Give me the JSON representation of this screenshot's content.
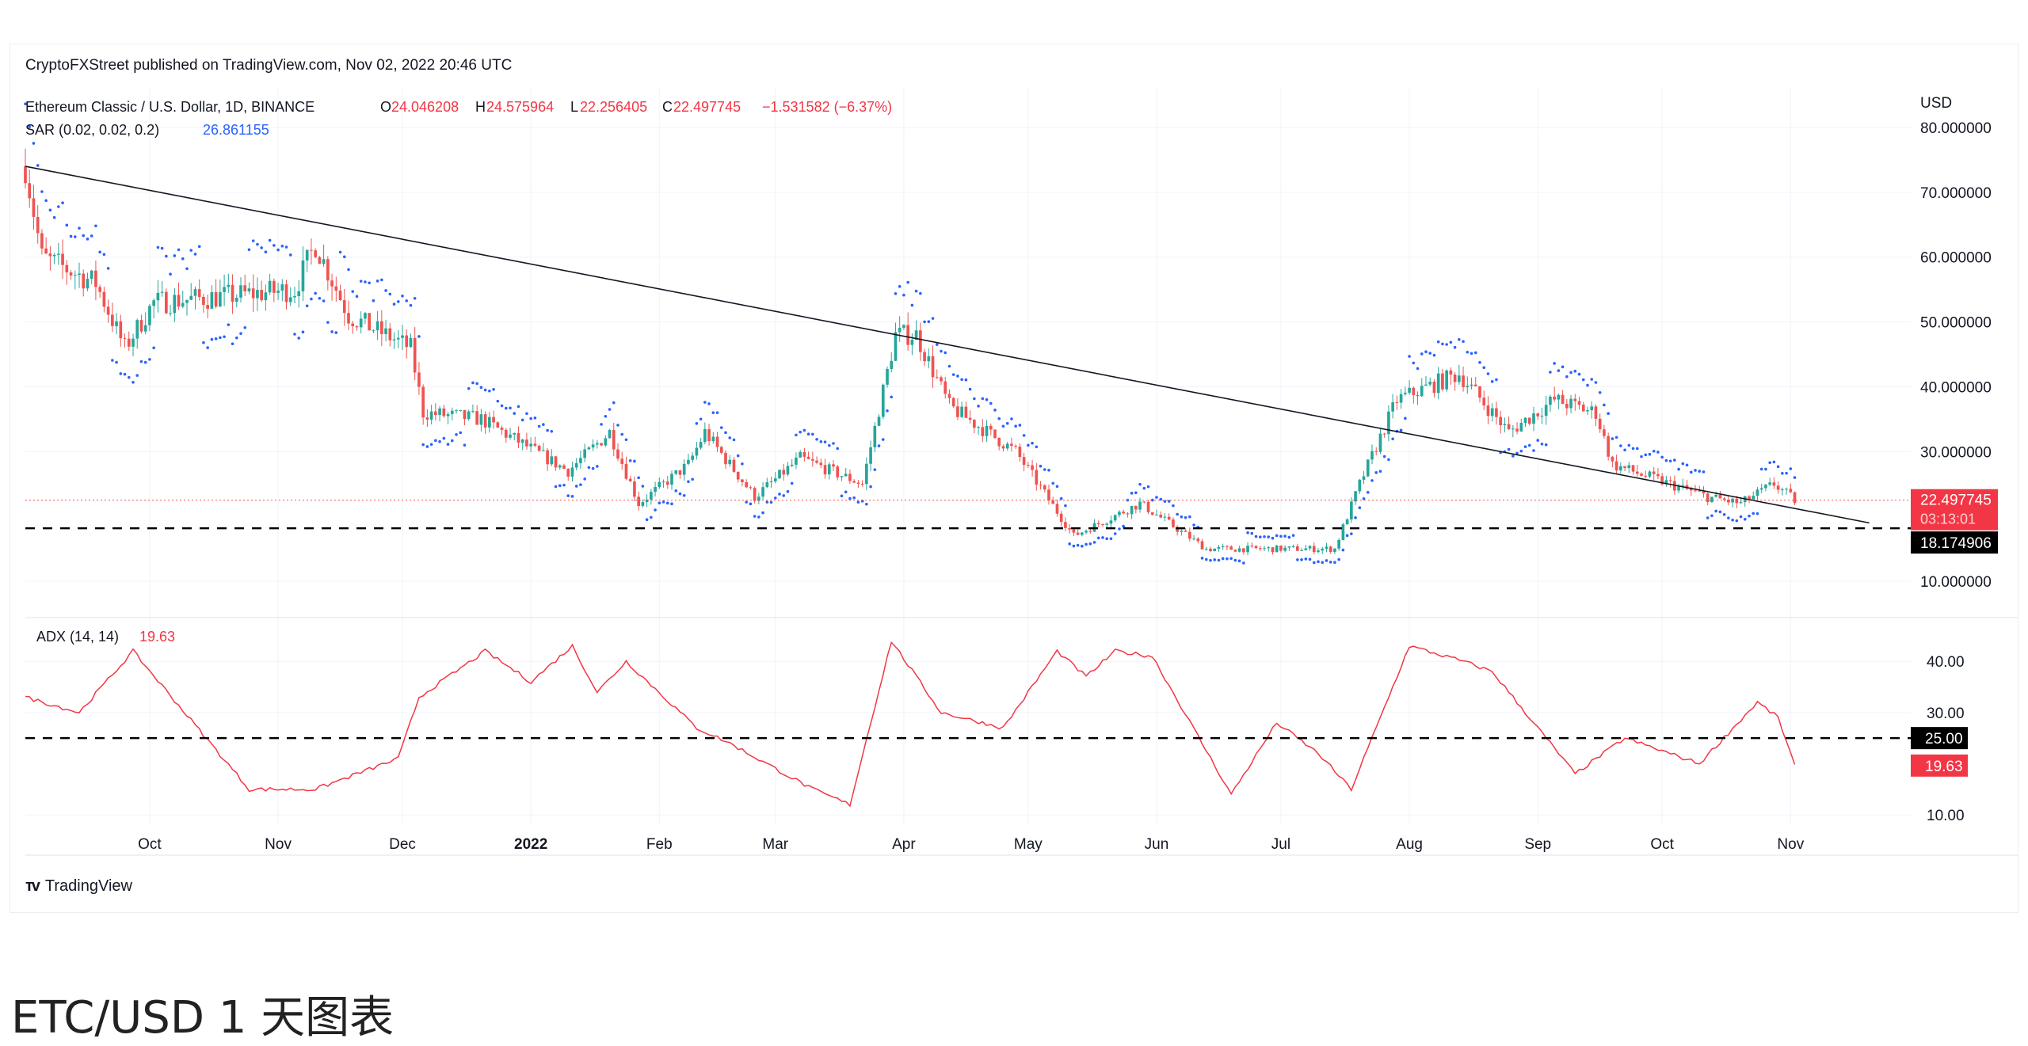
{
  "attribution": "CryptoFXStreet published on TradingView.com, Nov 02, 2022 20:46 UTC",
  "legend": {
    "symbol": "Ethereum Classic / U.S. Dollar, 1D, BINANCE",
    "open_label": "O",
    "open": "24.046208",
    "high_label": "H",
    "high": "24.575964",
    "low_label": "L",
    "low": "22.256405",
    "close_label": "C",
    "close": "22.497745",
    "change": "−1.531582 (−6.37%)",
    "sar_label": "SAR (0.02, 0.02, 0.2)",
    "sar_value": "26.861155",
    "adx_label": "ADX (14, 14)",
    "adx_value": "19.63"
  },
  "currency": "USD",
  "price_axis": [
    "80.000000",
    "70.000000",
    "60.000000",
    "50.000000",
    "40.000000",
    "30.000000",
    "10.000000"
  ],
  "price_tags": {
    "last": "22.497745",
    "countdown": "03:13:01",
    "support": "18.174906"
  },
  "adx_axis": [
    "40.00",
    "30.00",
    "10.00"
  ],
  "adx_tags": {
    "threshold": "25.00",
    "current": "19.63"
  },
  "x_axis_labels": [
    "Oct",
    "Nov",
    "Dec",
    "2022",
    "Feb",
    "Mar",
    "Apr",
    "May",
    "Jun",
    "Jul",
    "Aug",
    "Sep",
    "Oct",
    "Nov"
  ],
  "footer_logo": "TradingView",
  "page_heading": "ETC/USD 1 天图表",
  "colors": {
    "up": "#26a69a",
    "down": "#ef5350",
    "sar": "#2962ff",
    "adx": "#f23645",
    "trend": "#131722"
  },
  "chart_data": {
    "type": "candlestick",
    "price_ylim": [
      5,
      85
    ],
    "adx_ylim": [
      8,
      47
    ],
    "close_series_anchors": [
      {
        "x": "2021-09-01",
        "y": 74
      },
      {
        "x": "2021-09-05",
        "y": 60
      },
      {
        "x": "2021-09-18",
        "y": 56
      },
      {
        "x": "2021-09-25",
        "y": 46
      },
      {
        "x": "2021-10-02",
        "y": 53
      },
      {
        "x": "2021-10-20",
        "y": 54
      },
      {
        "x": "2021-11-05",
        "y": 55
      },
      {
        "x": "2021-11-10",
        "y": 62
      },
      {
        "x": "2021-11-18",
        "y": 51
      },
      {
        "x": "2021-12-03",
        "y": 46
      },
      {
        "x": "2021-12-06",
        "y": 36
      },
      {
        "x": "2021-12-20",
        "y": 35
      },
      {
        "x": "2022-01-10",
        "y": 27
      },
      {
        "x": "2022-01-20",
        "y": 33
      },
      {
        "x": "2022-01-27",
        "y": 22
      },
      {
        "x": "2022-02-08",
        "y": 28
      },
      {
        "x": "2022-02-12",
        "y": 33
      },
      {
        "x": "2022-02-24",
        "y": 23
      },
      {
        "x": "2022-03-07",
        "y": 29
      },
      {
        "x": "2022-03-22",
        "y": 25
      },
      {
        "x": "2022-03-30",
        "y": 48
      },
      {
        "x": "2022-04-04",
        "y": 48
      },
      {
        "x": "2022-04-12",
        "y": 37
      },
      {
        "x": "2022-04-28",
        "y": 30
      },
      {
        "x": "2022-05-12",
        "y": 17
      },
      {
        "x": "2022-05-28",
        "y": 22
      },
      {
        "x": "2022-06-13",
        "y": 15
      },
      {
        "x": "2022-07-02",
        "y": 15
      },
      {
        "x": "2022-07-14",
        "y": 15
      },
      {
        "x": "2022-07-20",
        "y": 25
      },
      {
        "x": "2022-07-29",
        "y": 38
      },
      {
        "x": "2022-08-13",
        "y": 42
      },
      {
        "x": "2022-08-25",
        "y": 33
      },
      {
        "x": "2022-09-05",
        "y": 38
      },
      {
        "x": "2022-09-15",
        "y": 36
      },
      {
        "x": "2022-09-19",
        "y": 28
      },
      {
        "x": "2022-10-12",
        "y": 23
      },
      {
        "x": "2022-10-20",
        "y": 22
      },
      {
        "x": "2022-10-28",
        "y": 25
      },
      {
        "x": "2022-11-02",
        "y": 22.5
      }
    ],
    "trendline": [
      {
        "x": "2021-09-01",
        "y": 74
      },
      {
        "x": "2022-11-20",
        "y": 19
      }
    ],
    "support_level": 18.174906,
    "adx_anchors": [
      {
        "x": "2021-09-01",
        "y": 33
      },
      {
        "x": "2021-09-14",
        "y": 30
      },
      {
        "x": "2021-09-27",
        "y": 42
      },
      {
        "x": "2021-10-25",
        "y": 15
      },
      {
        "x": "2021-11-10",
        "y": 15
      },
      {
        "x": "2021-11-30",
        "y": 21
      },
      {
        "x": "2021-12-05",
        "y": 33
      },
      {
        "x": "2021-12-21",
        "y": 42
      },
      {
        "x": "2022-01-01",
        "y": 36
      },
      {
        "x": "2022-01-11",
        "y": 43
      },
      {
        "x": "2022-01-17",
        "y": 34
      },
      {
        "x": "2022-01-24",
        "y": 40
      },
      {
        "x": "2022-02-10",
        "y": 27
      },
      {
        "x": "2022-02-18",
        "y": 24
      },
      {
        "x": "2022-03-10",
        "y": 15
      },
      {
        "x": "2022-03-19",
        "y": 12
      },
      {
        "x": "2022-03-29",
        "y": 44
      },
      {
        "x": "2022-04-10",
        "y": 30
      },
      {
        "x": "2022-04-25",
        "y": 27
      },
      {
        "x": "2022-05-08",
        "y": 42
      },
      {
        "x": "2022-05-15",
        "y": 37
      },
      {
        "x": "2022-05-22",
        "y": 42
      },
      {
        "x": "2022-05-31",
        "y": 41
      },
      {
        "x": "2022-06-19",
        "y": 14
      },
      {
        "x": "2022-06-30",
        "y": 28
      },
      {
        "x": "2022-07-10",
        "y": 22
      },
      {
        "x": "2022-07-18",
        "y": 15
      },
      {
        "x": "2022-08-01",
        "y": 43
      },
      {
        "x": "2022-08-14",
        "y": 40
      },
      {
        "x": "2022-08-21",
        "y": 38
      },
      {
        "x": "2022-09-10",
        "y": 18
      },
      {
        "x": "2022-09-22",
        "y": 25
      },
      {
        "x": "2022-10-10",
        "y": 20
      },
      {
        "x": "2022-10-24",
        "y": 32
      },
      {
        "x": "2022-10-29",
        "y": 29
      },
      {
        "x": "2022-11-02",
        "y": 19.63
      }
    ],
    "adx_threshold": 25,
    "grid": true
  }
}
